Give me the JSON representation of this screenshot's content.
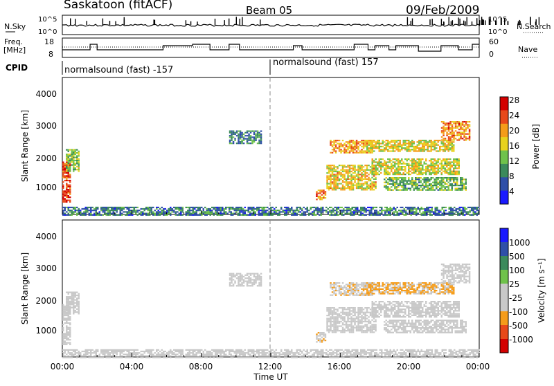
{
  "header": {
    "station": "Saskatoon (fitACF)",
    "beam": "Beam 05",
    "date": "09/Feb/2009"
  },
  "noise_panel": {
    "left_label": "N.Sky",
    "left_ticks": [
      "10^5",
      "10^0"
    ],
    "right_ticks": [
      "10^5",
      "10^0"
    ],
    "right_label": "N.Search"
  },
  "freq_panel": {
    "left_label_1": "Freq.",
    "left_label_2": "[MHz]",
    "left_ticks": [
      "18",
      "8"
    ],
    "right_ticks": [
      "60",
      "0"
    ],
    "right_label": "Nave"
  },
  "cpid": {
    "label": "CPID",
    "seg1": "normalsound (fast) -157",
    "seg2": "normalsound (fast) 157"
  },
  "power_panel": {
    "ylabel": "Slant Range [km]",
    "yticks": [
      "4000",
      "3000",
      "2000",
      "1000"
    ],
    "colorbar_label": "Power [dB]",
    "colorbar_ticks": [
      "28",
      "24",
      "20",
      "16",
      "12",
      "8",
      "4"
    ]
  },
  "velocity_panel": {
    "ylabel": "Slant Range [km]",
    "yticks": [
      "4000",
      "3000",
      "2000",
      "1000"
    ],
    "colorbar_label": "Velocity [m s⁻¹]",
    "colorbar_ticks": [
      "1000",
      "500",
      "100",
      "25",
      "-25",
      "-100",
      "-500",
      "-1000"
    ]
  },
  "xaxis": {
    "ticks": [
      "00:00",
      "04:00",
      "08:00",
      "12:00",
      "16:00",
      "20:00",
      "00:00"
    ],
    "label": "Time UT"
  },
  "chart_data": {
    "type": "heatmap",
    "title": "Saskatoon (fitACF) Beam 05 09/Feb/2009",
    "x_range_hours": [
      0,
      24
    ],
    "y_range_km": [
      200,
      4600
    ],
    "power_scale_db": [
      0,
      30
    ],
    "velocity_scale_ms": [
      -1000,
      1000
    ],
    "power_colors": [
      "#1a1aff",
      "#2f4fa8",
      "#3c8a5c",
      "#6fc24b",
      "#e8d21e",
      "#f59c1a",
      "#e8491a",
      "#d40000"
    ],
    "velocity_colors": [
      "#1a1aff",
      "#2f4fa8",
      "#3c8a5c",
      "#6fc24b",
      "#c8c8c8",
      "#c8c8c8",
      "#f59c1a",
      "#e8491a",
      "#d40000"
    ],
    "regions": [
      {
        "t": [
          0.0,
          0.4
        ],
        "r": [
          600,
          1900
        ],
        "power": 26,
        "velocity": -200
      },
      {
        "t": [
          0.2,
          0.9
        ],
        "r": [
          1600,
          2300
        ],
        "power": 14,
        "velocity": 20
      },
      {
        "t": [
          9.6,
          11.4
        ],
        "r": [
          2500,
          2900
        ],
        "power": 9,
        "velocity": 5
      },
      {
        "t": [
          14.6,
          15.1
        ],
        "r": [
          700,
          1000
        ],
        "power": 22,
        "velocity": -300
      },
      {
        "t": [
          15.4,
          17.8
        ],
        "r": [
          2200,
          2600
        ],
        "power": 20,
        "velocity": -300
      },
      {
        "t": [
          15.2,
          18.0
        ],
        "r": [
          1000,
          1800
        ],
        "power": 18,
        "velocity": 0
      },
      {
        "t": [
          17.5,
          22.5
        ],
        "r": [
          2250,
          2600
        ],
        "power": 17,
        "velocity": -350
      },
      {
        "t": [
          17.8,
          22.8
        ],
        "r": [
          1500,
          2000
        ],
        "power": 16,
        "velocity": 10
      },
      {
        "t": [
          18.5,
          23.2
        ],
        "r": [
          1000,
          1400
        ],
        "power": 12,
        "velocity": 0
      },
      {
        "t": [
          21.8,
          23.4
        ],
        "r": [
          2600,
          3200
        ],
        "power": 22,
        "velocity": -250
      },
      {
        "t": [
          0.0,
          24.0
        ],
        "r": [
          200,
          450
        ],
        "power": 8,
        "velocity": -50
      }
    ]
  }
}
